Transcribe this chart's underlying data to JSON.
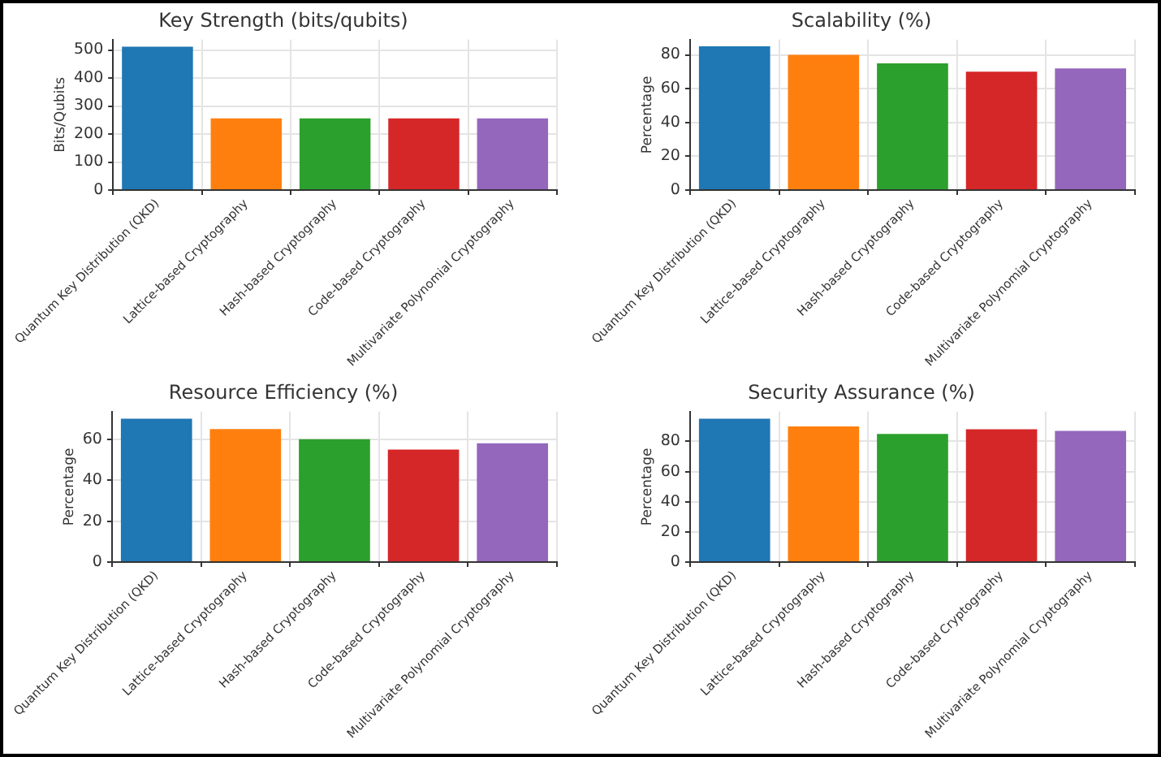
{
  "chart_data": [
    {
      "type": "bar",
      "title": "Key Strength (bits/qubits)",
      "ylabel": "Bits/Qubits",
      "categories": [
        "Quantum Key Distribution (QKD)",
        "Lattice-based Cryptography",
        "Hash-based Cryptography",
        "Code-based Cryptography",
        "Multivariate Polynomial Cryptography"
      ],
      "values": [
        512,
        256,
        256,
        256,
        256
      ],
      "colors": [
        "#1f77b4",
        "#ff7f0e",
        "#2ca02c",
        "#d62728",
        "#9467bd"
      ],
      "ylim": [
        0,
        537
      ],
      "yticks": [
        0,
        100,
        200,
        300,
        400,
        500
      ],
      "grid": true
    },
    {
      "type": "bar",
      "title": "Scalability (%)",
      "ylabel": "Percentage",
      "categories": [
        "Quantum Key Distribution (QKD)",
        "Lattice-based Cryptography",
        "Hash-based Cryptography",
        "Code-based Cryptography",
        "Multivariate Polynomial Cryptography"
      ],
      "values": [
        85,
        80,
        75,
        70,
        72
      ],
      "colors": [
        "#1f77b4",
        "#ff7f0e",
        "#2ca02c",
        "#d62728",
        "#9467bd"
      ],
      "ylim": [
        0,
        89
      ],
      "yticks": [
        0,
        20,
        40,
        60,
        80
      ],
      "grid": true
    },
    {
      "type": "bar",
      "title": "Resource Efficiency (%)",
      "ylabel": "Percentage",
      "categories": [
        "Quantum Key Distribution (QKD)",
        "Lattice-based Cryptography",
        "Hash-based Cryptography",
        "Code-based Cryptography",
        "Multivariate Polynomial Cryptography"
      ],
      "values": [
        70,
        65,
        60,
        55,
        58
      ],
      "colors": [
        "#1f77b4",
        "#ff7f0e",
        "#2ca02c",
        "#d62728",
        "#9467bd"
      ],
      "ylim": [
        0,
        73.5
      ],
      "yticks": [
        0,
        20,
        40,
        60
      ],
      "grid": true
    },
    {
      "type": "bar",
      "title": "Security Assurance (%)",
      "ylabel": "Percentage",
      "categories": [
        "Quantum Key Distribution (QKD)",
        "Lattice-based Cryptography",
        "Hash-based Cryptography",
        "Code-based Cryptography",
        "Multivariate Polynomial Cryptography"
      ],
      "values": [
        95,
        90,
        85,
        88,
        87
      ],
      "colors": [
        "#1f77b4",
        "#ff7f0e",
        "#2ca02c",
        "#d62728",
        "#9467bd"
      ],
      "ylim": [
        0,
        99.75
      ],
      "yticks": [
        0,
        20,
        40,
        60,
        80
      ],
      "grid": true
    }
  ]
}
